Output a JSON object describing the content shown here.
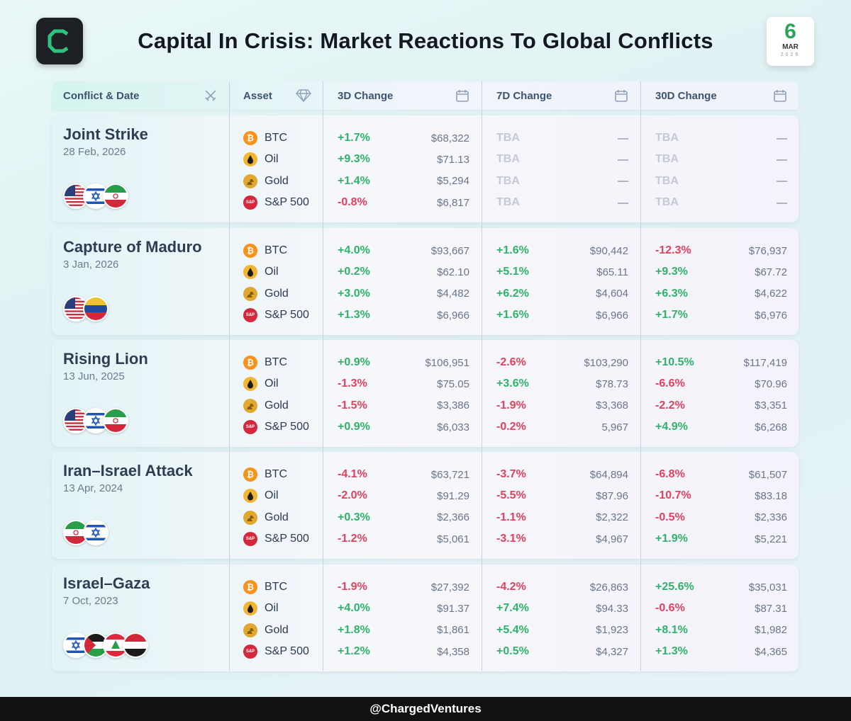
{
  "header": {
    "title": "Capital In Crisis: Market Reactions To Global Conflicts",
    "date_day": "6",
    "date_month": "MAR",
    "date_year": "2026"
  },
  "footer": {
    "handle": "@ChargedVentures"
  },
  "colors": {
    "positive": "#2fb36a",
    "negative": "#e0425d",
    "accent": "#2aa65a"
  },
  "chart_data": {
    "type": "table",
    "title": "Capital In Crisis: Market Reactions To Global Conflicts",
    "columns": [
      "Conflict & Date",
      "Asset",
      "3D Change",
      "7D Change",
      "30D Change"
    ],
    "assets": [
      "BTC",
      "Oil",
      "Gold",
      "S&P 500"
    ],
    "rows": [
      {
        "conflict": "Joint Strike",
        "date": "28 Feb, 2026",
        "flags": [
          "us",
          "il",
          "ir"
        ],
        "values": [
          [
            [
              "+1.7%",
              "$68,322"
            ],
            [
              "TBA",
              "—"
            ],
            [
              "TBA",
              "—"
            ]
          ],
          [
            [
              "+9.3%",
              "$71.13"
            ],
            [
              "TBA",
              "—"
            ],
            [
              "TBA",
              "—"
            ]
          ],
          [
            [
              "+1.4%",
              "$5,294"
            ],
            [
              "TBA",
              "—"
            ],
            [
              "TBA",
              "—"
            ]
          ],
          [
            [
              "-0.8%",
              "$6,817"
            ],
            [
              "TBA",
              "—"
            ],
            [
              "TBA",
              "—"
            ]
          ]
        ]
      },
      {
        "conflict": "Capture of Maduro",
        "date": "3 Jan, 2026",
        "flags": [
          "us",
          "ve"
        ],
        "values": [
          [
            [
              "+4.0%",
              "$93,667"
            ],
            [
              "+1.6%",
              "$90,442"
            ],
            [
              "-12.3%",
              "$76,937"
            ]
          ],
          [
            [
              "+0.2%",
              "$62.10"
            ],
            [
              "+5.1%",
              "$65.11"
            ],
            [
              "+9.3%",
              "$67.72"
            ]
          ],
          [
            [
              "+3.0%",
              "$4,482"
            ],
            [
              "+6.2%",
              "$4,604"
            ],
            [
              "+6.3%",
              "$4,622"
            ]
          ],
          [
            [
              "+1.3%",
              "$6,966"
            ],
            [
              "+1.6%",
              "$6,966"
            ],
            [
              "+1.7%",
              "$6,976"
            ]
          ]
        ]
      },
      {
        "conflict": "Rising Lion",
        "date": "13 Jun, 2025",
        "flags": [
          "us",
          "il",
          "ir"
        ],
        "values": [
          [
            [
              "+0.9%",
              "$106,951"
            ],
            [
              "-2.6%",
              "$103,290"
            ],
            [
              "+10.5%",
              "$117,419"
            ]
          ],
          [
            [
              "-1.3%",
              "$75.05"
            ],
            [
              "+3.6%",
              "$78.73"
            ],
            [
              "-6.6%",
              "$70.96"
            ]
          ],
          [
            [
              "-1.5%",
              "$3,386"
            ],
            [
              "-1.9%",
              "$3,368"
            ],
            [
              "-2.2%",
              "$3,351"
            ]
          ],
          [
            [
              "+0.9%",
              "$6,033"
            ],
            [
              "-0.2%",
              "5,967"
            ],
            [
              "+4.9%",
              "$6,268"
            ]
          ]
        ]
      },
      {
        "conflict": "Iran–Israel Attack",
        "date": "13 Apr, 2024",
        "flags": [
          "ir",
          "il"
        ],
        "values": [
          [
            [
              "-4.1%",
              "$63,721"
            ],
            [
              "-3.7%",
              "$64,894"
            ],
            [
              "-6.8%",
              "$61,507"
            ]
          ],
          [
            [
              "-2.0%",
              "$91.29"
            ],
            [
              "-5.5%",
              "$87.96"
            ],
            [
              "-10.7%",
              "$83.18"
            ]
          ],
          [
            [
              "+0.3%",
              "$2,366"
            ],
            [
              "-1.1%",
              "$2,322"
            ],
            [
              "-0.5%",
              "$2,336"
            ]
          ],
          [
            [
              "-1.2%",
              "$5,061"
            ],
            [
              "-3.1%",
              "$4,967"
            ],
            [
              "+1.9%",
              "$5,221"
            ]
          ]
        ]
      },
      {
        "conflict": "Israel–Gaza",
        "date": "7 Oct, 2023",
        "flags": [
          "il",
          "ps",
          "lb",
          "ye"
        ],
        "values": [
          [
            [
              "-1.9%",
              "$27,392"
            ],
            [
              "-4.2%",
              "$26,863"
            ],
            [
              "+25.6%",
              "$35,031"
            ]
          ],
          [
            [
              "+4.0%",
              "$91.37"
            ],
            [
              "+7.4%",
              "$94.33"
            ],
            [
              "-0.6%",
              "$87.31"
            ]
          ],
          [
            [
              "+1.8%",
              "$1,861"
            ],
            [
              "+5.4%",
              "$1,923"
            ],
            [
              "+8.1%",
              "$1,982"
            ]
          ],
          [
            [
              "+1.2%",
              "$4,358"
            ],
            [
              "+0.5%",
              "$4,327"
            ],
            [
              "+1.3%",
              "$4,365"
            ]
          ]
        ]
      }
    ]
  }
}
